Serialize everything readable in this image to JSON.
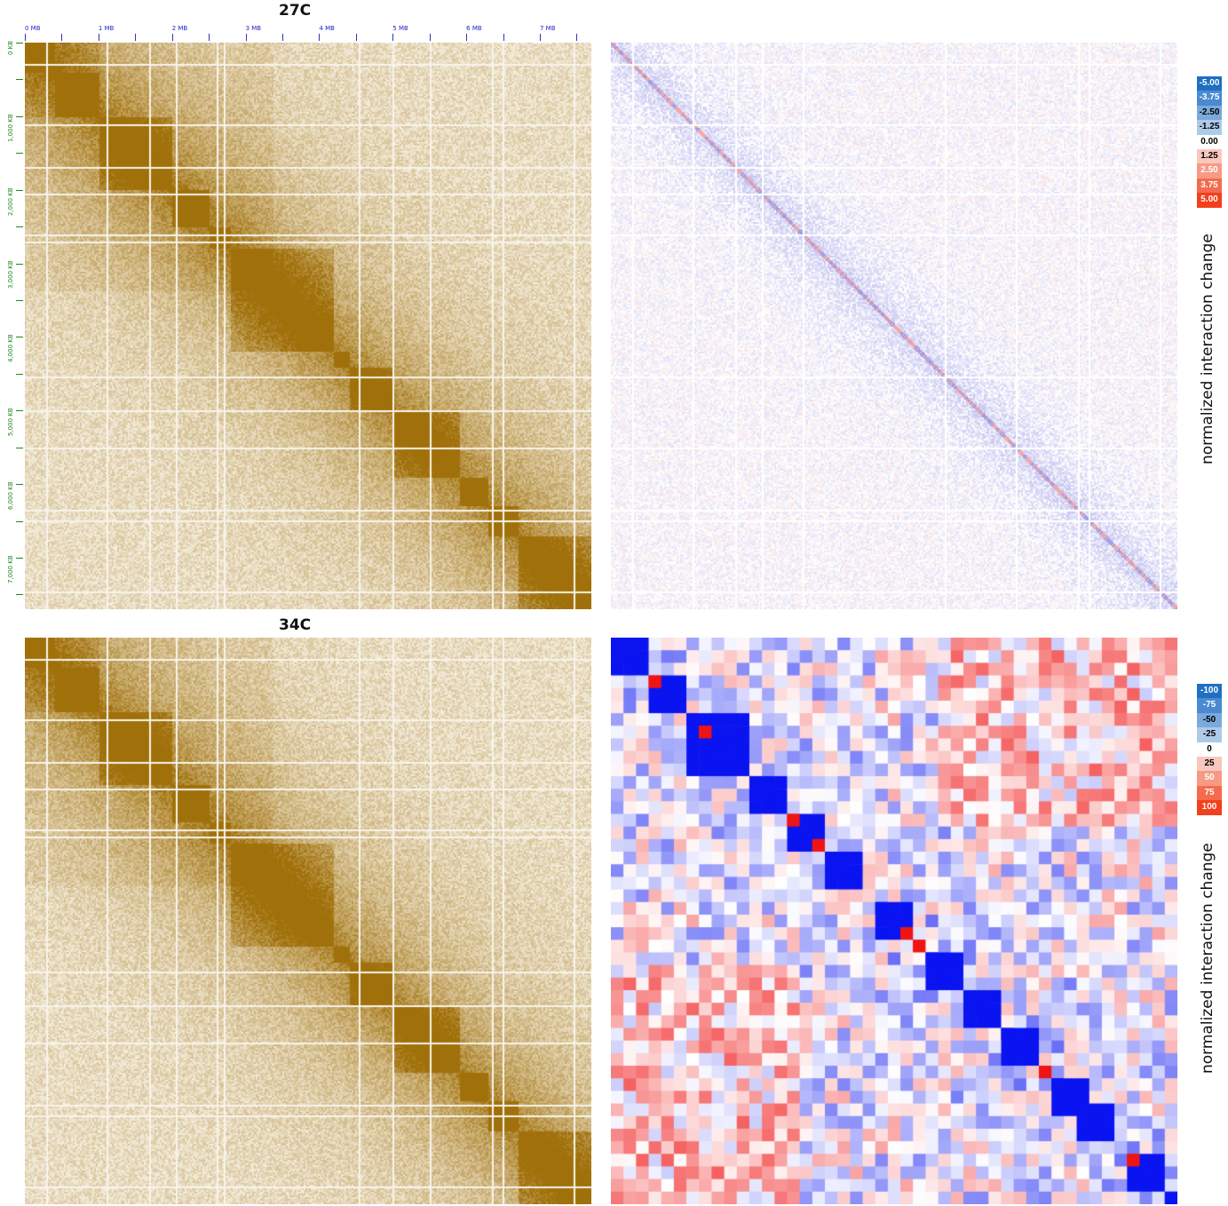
{
  "panels": {
    "top_left_title": "27C",
    "bottom_left_title": "34C"
  },
  "axes": {
    "x_ticks": [
      "0 MB",
      "1 MB",
      "2 MB",
      "3 MB",
      "4 MB",
      "5 MB",
      "6 MB",
      "7 MB"
    ],
    "y_ticks": [
      "0 KB",
      "1,000 KB",
      "2,000 KB",
      "3,000 KB",
      "4,000 KB",
      "5,000 KB",
      "6,000 KB",
      "7,000 KB"
    ]
  },
  "legend_top": {
    "title": "normalized interaction change",
    "values": [
      "-5.00",
      "-3.75",
      "-2.50",
      "-1.25",
      "0.00",
      "1.25",
      "2.50",
      "3.75",
      "5.00"
    ],
    "colors": [
      "#1f6fc2",
      "#4a8ad0",
      "#7aa9dc",
      "#aecae9",
      "#ffffff",
      "#f8c8bd",
      "#f69a86",
      "#f46b4e",
      "#f2401c"
    ]
  },
  "legend_bottom": {
    "title": "normalized interaction change",
    "values": [
      "-100",
      "-75",
      "-50",
      "-25",
      "0",
      "25",
      "50",
      "75",
      "100"
    ],
    "colors": [
      "#1f6fc2",
      "#4a8ad0",
      "#7aa9dc",
      "#aecae9",
      "#ffffff",
      "#f8c8bd",
      "#f69a86",
      "#f46b4e",
      "#f2401c"
    ]
  },
  "chart_data": [
    {
      "type": "heatmap",
      "title": "27C",
      "x_range_mb": [
        0,
        7.7
      ],
      "y_range_kb": [
        0,
        7700
      ],
      "colormap": "white-to-brown",
      "color_high": "#a0700a",
      "color_low": "#f3ecdc",
      "domain_boundaries_mb": [
        0,
        0.4,
        1.0,
        2.0,
        2.5,
        2.8,
        4.2,
        4.4,
        5.0,
        5.9,
        6.3,
        6.7,
        7.7
      ]
    },
    {
      "type": "heatmap",
      "title": "34C",
      "x_range_mb": [
        0,
        7.7
      ],
      "y_range_kb": [
        0,
        7700
      ],
      "colormap": "white-to-brown",
      "color_high": "#a0700a",
      "color_low": "#f3ecdc",
      "domain_boundaries_mb": [
        0,
        0.4,
        1.0,
        2.0,
        2.5,
        2.8,
        4.2,
        4.4,
        5.0,
        5.9,
        6.3,
        6.7,
        7.7
      ]
    },
    {
      "type": "heatmap",
      "x_range_mb": [
        0,
        7.7
      ],
      "y_range_kb": [
        0,
        7700
      ],
      "colormap": "diverging blue-white-red",
      "value_range": [
        -5,
        5
      ],
      "color_negative": "#3a3ad0",
      "color_positive": "#e03a3a"
    },
    {
      "type": "heatmap",
      "bins": 45,
      "colormap": "diverging blue-white-red",
      "value_range": [
        -100,
        100
      ],
      "color_negative": "#0a14f0",
      "color_positive": "#f01414",
      "domain_blocks_bins": [
        [
          0,
          2
        ],
        [
          3,
          5
        ],
        [
          6,
          10
        ],
        [
          11,
          13
        ],
        [
          14,
          16
        ],
        [
          17,
          19
        ],
        [
          21,
          23
        ],
        [
          25,
          27
        ],
        [
          28,
          30
        ],
        [
          31,
          33
        ],
        [
          35,
          37
        ],
        [
          37,
          39
        ],
        [
          41,
          43
        ],
        [
          44,
          44
        ]
      ]
    }
  ]
}
